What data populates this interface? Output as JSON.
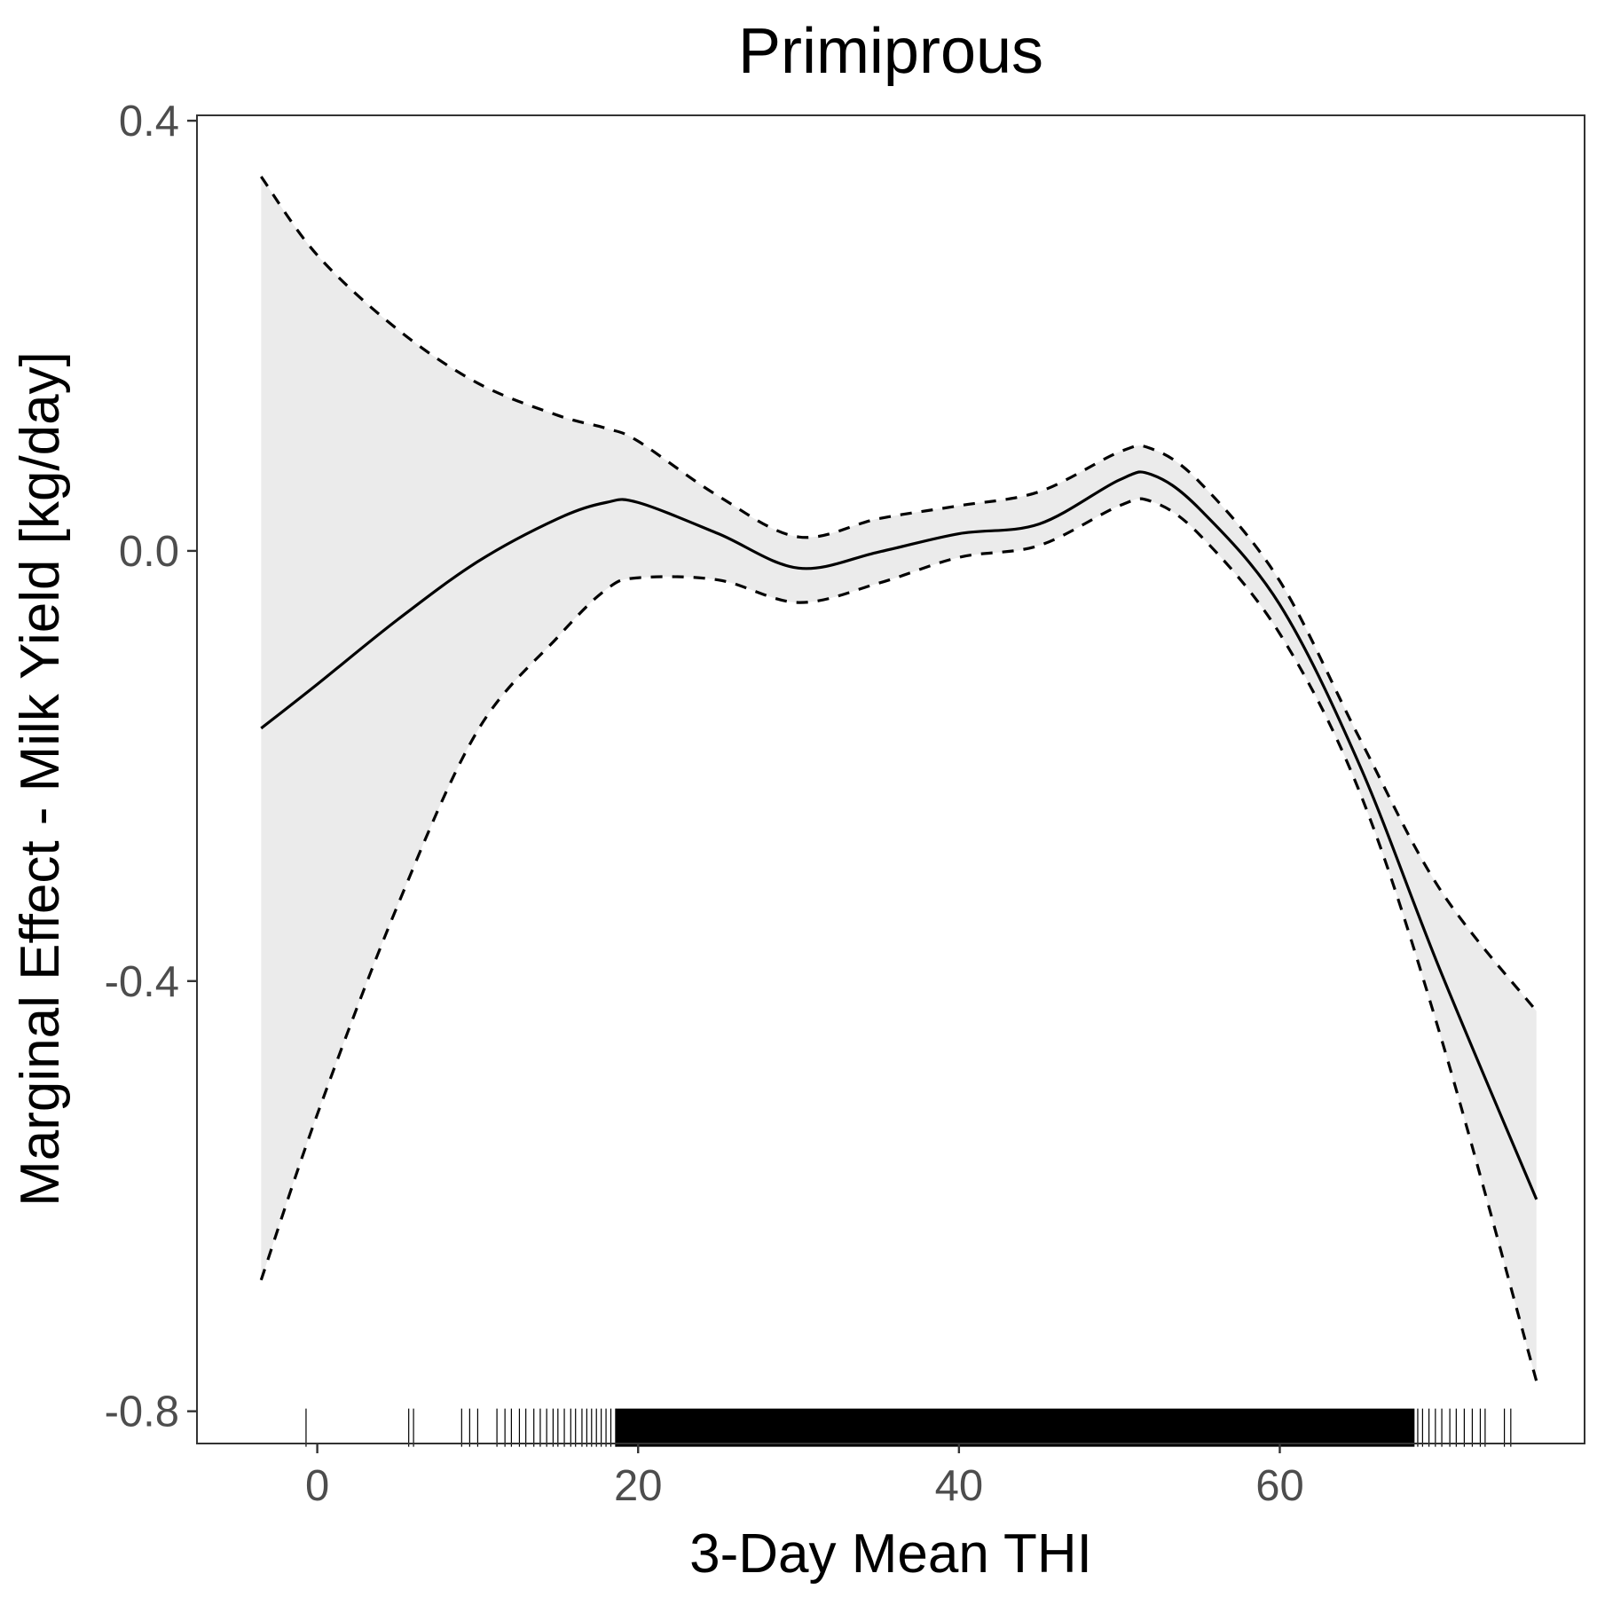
{
  "chart_data": {
    "type": "line",
    "title": "Primiprous",
    "xlabel": "3-Day Mean THI",
    "ylabel": "Marginal Effect - Milk Yield [kg/day]",
    "xlim": [
      -7.5,
      79
    ],
    "ylim": [
      -0.83,
      0.405
    ],
    "x_ticks": [
      0,
      20,
      40,
      60
    ],
    "x_tick_labels": [
      "0",
      "20",
      "40",
      "60"
    ],
    "y_ticks": [
      0.4,
      0.0,
      -0.4,
      -0.8
    ],
    "y_tick_labels": [
      "0.4",
      "0.0",
      "-0.4",
      "-0.8"
    ],
    "grid": false,
    "legend": "none",
    "colors": {
      "line": "#000000",
      "band": "#ebebeb",
      "axis": "#333333",
      "tick_text": "#4d4d4d"
    },
    "x": [
      -3.5,
      0,
      5,
      10,
      15,
      18,
      20,
      25,
      30,
      35,
      40,
      45,
      50,
      52,
      55,
      60,
      65,
      70,
      76
    ],
    "series": [
      {
        "role": "fit",
        "style": "solid",
        "values": [
          -0.165,
          -0.124,
          -0.064,
          -0.01,
          0.03,
          0.045,
          0.045,
          0.016,
          -0.016,
          -0.001,
          0.016,
          0.025,
          0.066,
          0.071,
          0.039,
          -0.05,
          -0.2,
          -0.39,
          -0.603
        ]
      },
      {
        "role": "upper",
        "style": "dashed",
        "values": [
          0.348,
          0.275,
          0.206,
          0.156,
          0.126,
          0.114,
          0.102,
          0.051,
          0.013,
          0.03,
          0.042,
          0.055,
          0.092,
          0.095,
          0.064,
          -0.028,
          -0.175,
          -0.315,
          -0.428
        ]
      },
      {
        "role": "lower",
        "style": "dashed",
        "values": [
          -0.678,
          -0.524,
          -0.33,
          -0.167,
          -0.08,
          -0.036,
          -0.025,
          -0.027,
          -0.048,
          -0.03,
          -0.006,
          0.005,
          0.042,
          0.046,
          0.015,
          -0.077,
          -0.225,
          -0.45,
          -0.772
        ]
      }
    ],
    "rug": {
      "sparse_x": [
        -0.7,
        5.7,
        6.0,
        9.0,
        9.5,
        10.0,
        11.2,
        11.7,
        12.1,
        12.6,
        13.0,
        13.5,
        13.9,
        14.3,
        14.7,
        15.0,
        15.4,
        15.8,
        16.1,
        16.5,
        16.8,
        17.1,
        17.4,
        17.7,
        18.0,
        18.3,
        18.6,
        68.6,
        68.9,
        69.3,
        69.7,
        70.1,
        70.6,
        71.0,
        71.5,
        72.0,
        72.5,
        72.8,
        74.0,
        74.4
      ],
      "dense_range": [
        18.6,
        68.4
      ]
    }
  }
}
